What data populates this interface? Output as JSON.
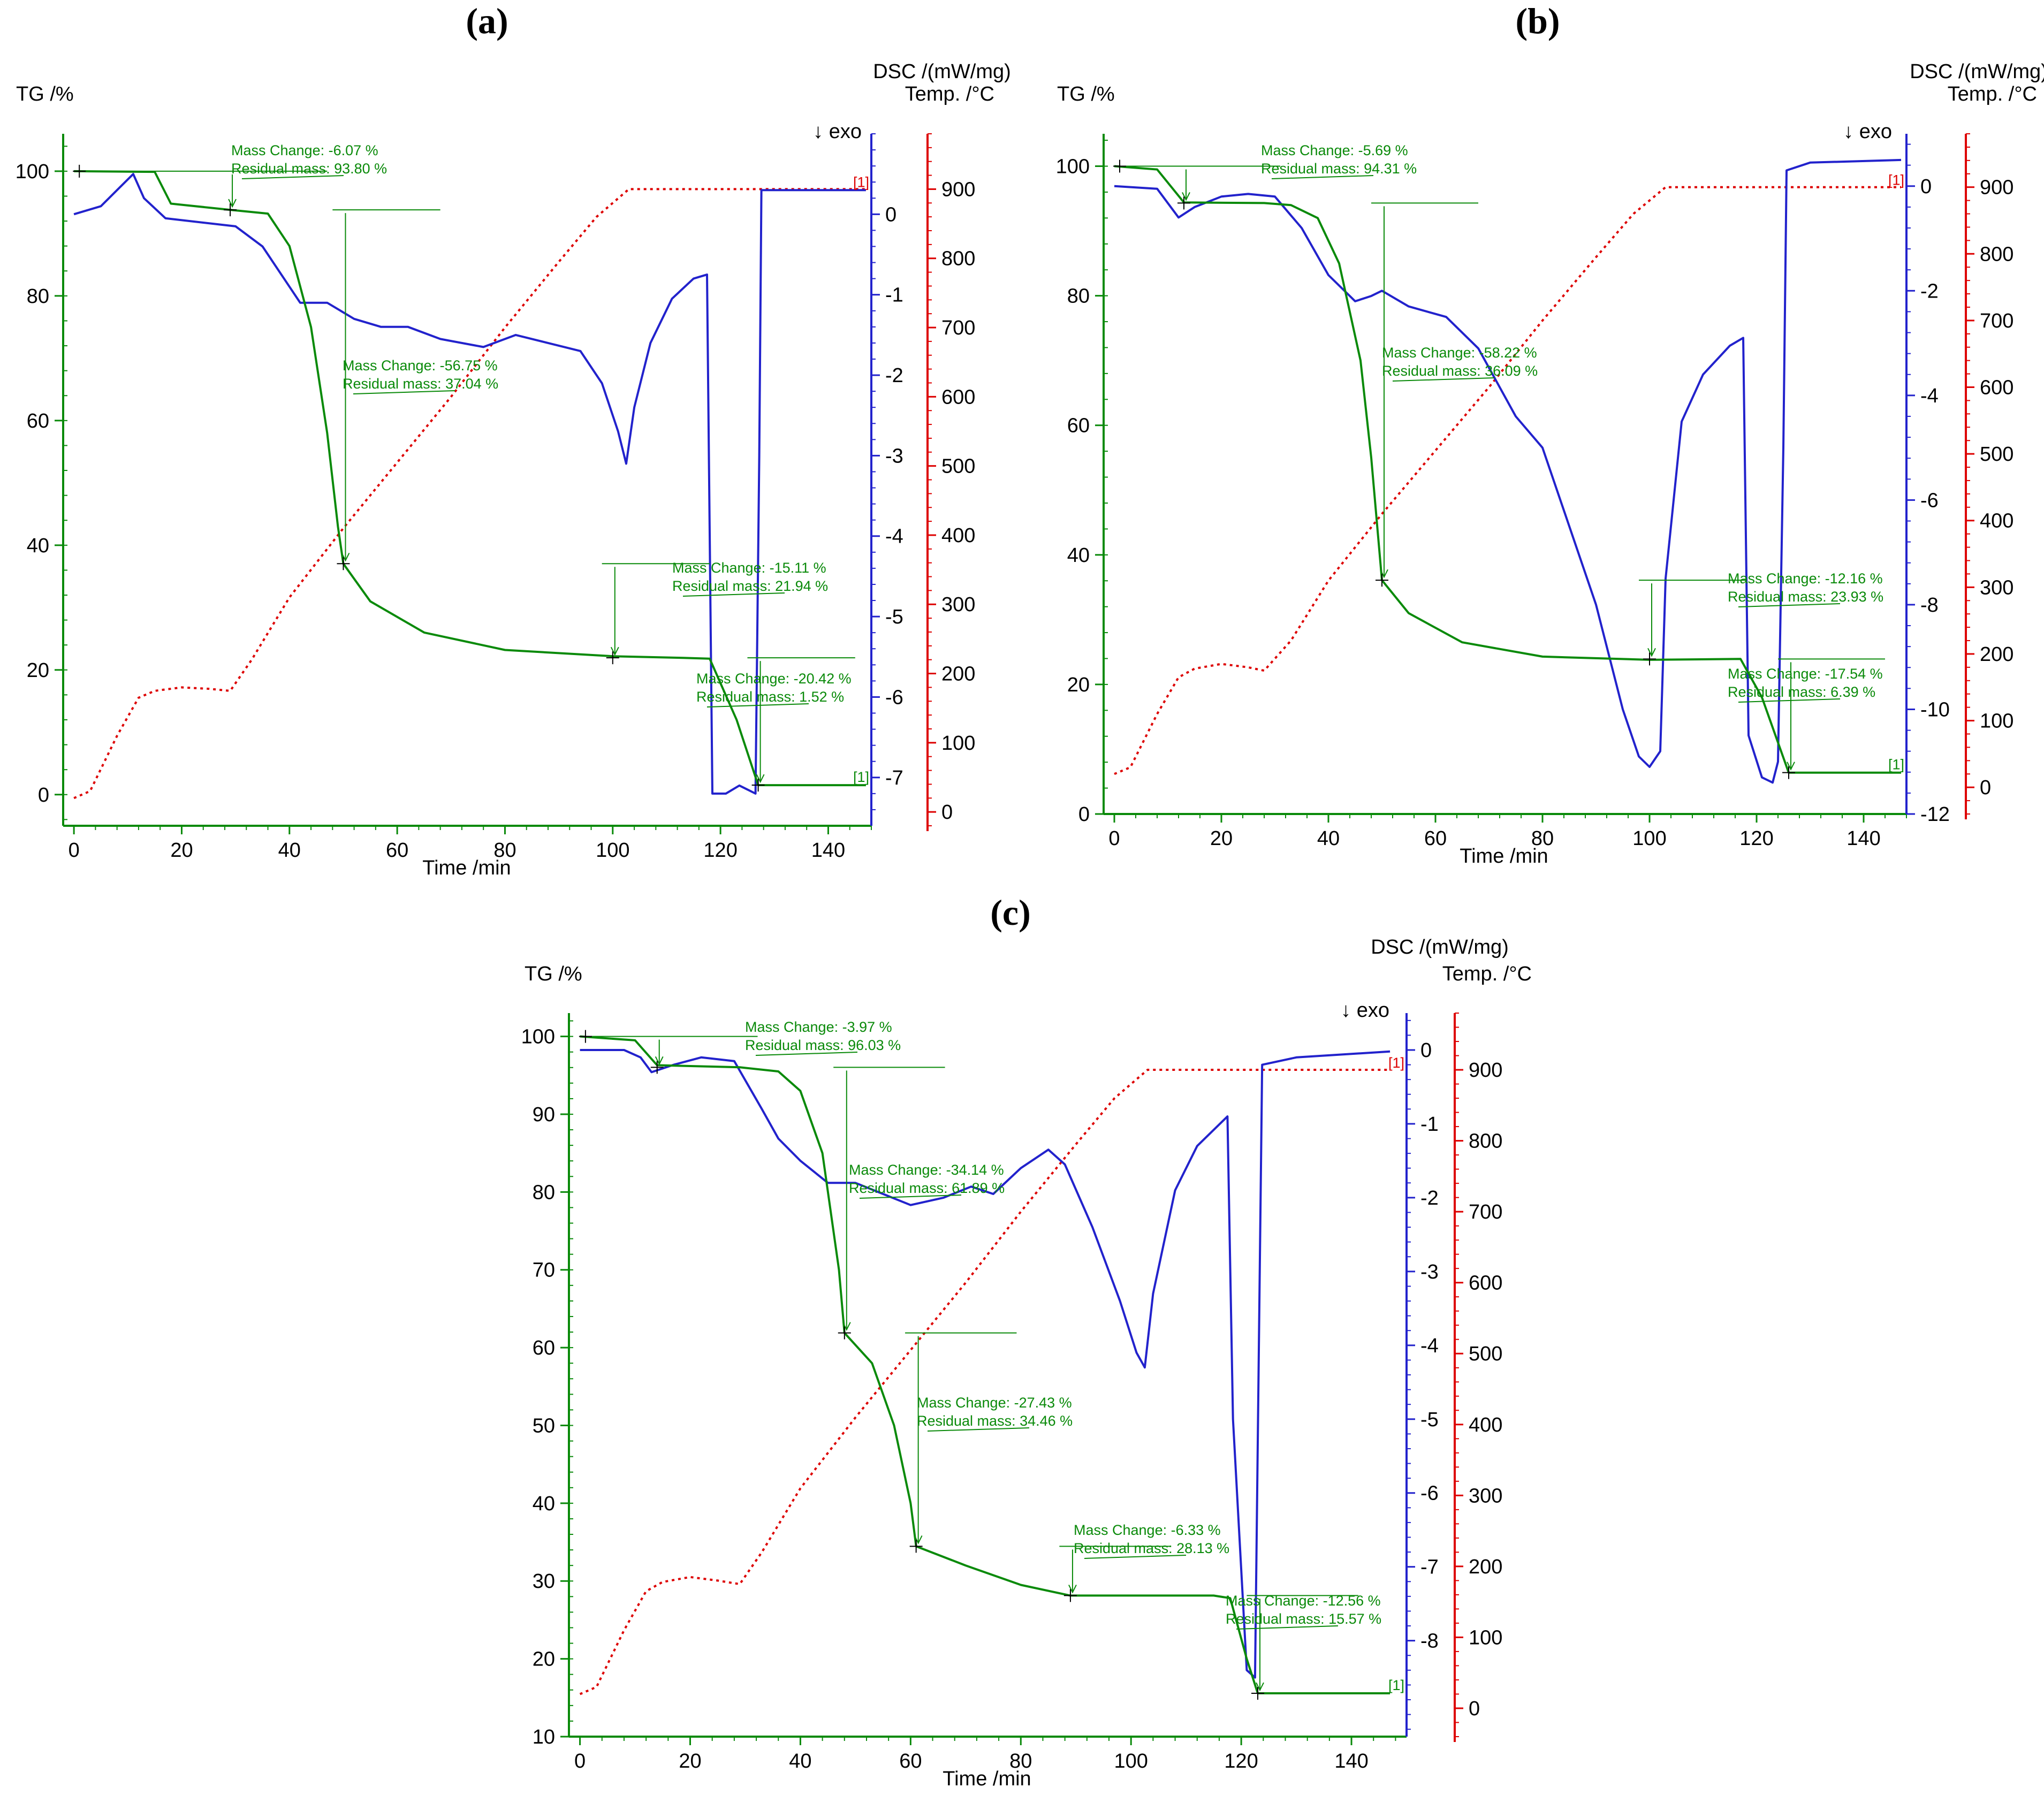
{
  "panels": [
    {
      "title": "(a)",
      "tg_label": "TG /%",
      "dsc_label": "DSC /(mW/mg)",
      "temp_label": "Temp. /°C",
      "exo_label": "↓ exo",
      "time_label": "Time /min",
      "marker_text": "[1]",
      "annotations": [
        {
          "mc": "Mass Change:   -6.07 %",
          "rm": "Residual mass:  93.80 %"
        },
        {
          "mc": "Mass Change:   -56.75 %",
          "rm": "Residual mass:  37.04 %"
        },
        {
          "mc": "Mass Change:   -15.11 %",
          "rm": "Residual mass:   21.94 %"
        },
        {
          "mc": "Mass Change:   -20.42 %",
          "rm": "Residual mass:       1.52 %"
        }
      ]
    },
    {
      "title": "(b)",
      "tg_label": "TG /%",
      "dsc_label": "DSC /(mW/mg)",
      "temp_label": "Temp. /°C",
      "exo_label": "↓ exo",
      "time_label": "Time /min",
      "marker_text": "[1]",
      "annotations": [
        {
          "mc": "Mass Change:   -5.69 %",
          "rm": "Residual mass:  94.31 %"
        },
        {
          "mc": "Mass Change:   -58.22 %",
          "rm": "Residual mass:  36.09 %"
        },
        {
          "mc": "Mass Change:   -12.16 %",
          "rm": "Residual mass:   23.93 %"
        },
        {
          "mc": "Mass Change:   -17.54 %",
          "rm": "Residual mass:       6.39 %"
        }
      ]
    },
    {
      "title": "(c)",
      "tg_label": "TG /%",
      "dsc_label": "DSC /(mW/mg)",
      "temp_label": "Temp. /°C",
      "exo_label": "↓ exo",
      "time_label": "Time /min",
      "marker_text": "[1]",
      "annotations": [
        {
          "mc": "Mass Change:   -3.97 %",
          "rm": "Residual mass:  96.03 %"
        },
        {
          "mc": "Mass Change:   -34.14 %",
          "rm": "Residual mass:  61.89 %"
        },
        {
          "mc": "Mass Change:   -27.43 %",
          "rm": "Residual mass:  34.46 %"
        },
        {
          "mc": "Mass Change:   -6.33 %",
          "rm": "Residual mass:  28.13 %"
        },
        {
          "mc": "Mass Change:   -12.56 %",
          "rm": "Residual mass:  15.57 %"
        }
      ]
    }
  ],
  "chart_data": [
    {
      "type": "line",
      "title": "(a)",
      "xlabel": "Time /min",
      "ylabel": "TG /%",
      "ylabel2": "DSC /(mW/mg)",
      "ylabel3": "Temp. /°C",
      "xlim": [
        -2,
        148
      ],
      "ylim_tg": [
        -5,
        106
      ],
      "ylim_dsc": [
        -7.6,
        1.0
      ],
      "ylim_temp": [
        -20,
        980
      ],
      "xticks": [
        0,
        20,
        40,
        60,
        80,
        100,
        120,
        140
      ],
      "tg_ticks": [
        0,
        20,
        40,
        60,
        80,
        100
      ],
      "dsc_ticks": [
        0,
        -1,
        -2,
        -3,
        -4,
        -5,
        -6,
        -7
      ],
      "temp_ticks": [
        0,
        100,
        200,
        300,
        400,
        500,
        600,
        700,
        800,
        900
      ],
      "tg": [
        [
          0,
          100
        ],
        [
          15,
          99.9
        ],
        [
          18,
          94.8
        ],
        [
          29,
          93.8
        ],
        [
          36,
          93.2
        ],
        [
          40,
          88
        ],
        [
          44,
          75
        ],
        [
          47,
          58
        ],
        [
          49,
          43
        ],
        [
          50,
          37.04
        ],
        [
          55,
          31
        ],
        [
          65,
          26
        ],
        [
          80,
          23.2
        ],
        [
          100,
          22.2
        ],
        [
          113,
          21.94
        ],
        [
          118,
          21.8
        ],
        [
          123,
          12
        ],
        [
          127,
          1.52
        ],
        [
          147,
          1.52
        ]
      ],
      "dsc": [
        [
          0,
          0
        ],
        [
          5,
          0.1
        ],
        [
          8,
          0.3
        ],
        [
          11,
          0.5
        ],
        [
          13,
          0.2
        ],
        [
          17,
          -0.05
        ],
        [
          30,
          -0.15
        ],
        [
          35,
          -0.4
        ],
        [
          40,
          -0.9
        ],
        [
          42,
          -1.1
        ],
        [
          47,
          -1.1
        ],
        [
          52,
          -1.3
        ],
        [
          57,
          -1.4
        ],
        [
          62,
          -1.4
        ],
        [
          68,
          -1.55
        ],
        [
          76,
          -1.65
        ],
        [
          82,
          -1.5
        ],
        [
          88,
          -1.6
        ],
        [
          94,
          -1.7
        ],
        [
          98,
          -2.1
        ],
        [
          101,
          -2.7
        ],
        [
          102.5,
          -3.1
        ],
        [
          104,
          -2.4
        ],
        [
          107,
          -1.6
        ],
        [
          111,
          -1.05
        ],
        [
          115,
          -0.8
        ],
        [
          117.5,
          -0.75
        ],
        [
          118.5,
          -7.2
        ],
        [
          121,
          -7.2
        ],
        [
          123.5,
          -7.1
        ],
        [
          125,
          -7.15
        ],
        [
          126.5,
          -7.2
        ],
        [
          127.2,
          -3
        ],
        [
          127.6,
          0.3
        ],
        [
          130,
          0.3
        ],
        [
          147,
          0.3
        ]
      ],
      "temp": [
        [
          0,
          20
        ],
        [
          3,
          30
        ],
        [
          8,
          110
        ],
        [
          12,
          165
        ],
        [
          15,
          175
        ],
        [
          20,
          180
        ],
        [
          25,
          178
        ],
        [
          29,
          175
        ],
        [
          33,
          220
        ],
        [
          40,
          310
        ],
        [
          50,
          410
        ],
        [
          60,
          505
        ],
        [
          70,
          600
        ],
        [
          80,
          700
        ],
        [
          90,
          795
        ],
        [
          97,
          860
        ],
        [
          103,
          900
        ],
        [
          147,
          900
        ]
      ],
      "steps": [
        {
          "mass_change": -6.07,
          "residual_mass": 93.8
        },
        {
          "mass_change": -56.75,
          "residual_mass": 37.04
        },
        {
          "mass_change": -15.11,
          "residual_mass": 21.94
        },
        {
          "mass_change": -20.42,
          "residual_mass": 1.52
        }
      ]
    },
    {
      "type": "line",
      "title": "(b)",
      "xlabel": "Time /min",
      "ylabel": "TG /%",
      "ylabel2": "DSC /(mW/mg)",
      "ylabel3": "Temp. /°C",
      "xlim": [
        -2,
        148
      ],
      "ylim_tg": [
        0,
        105
      ],
      "ylim_dsc": [
        -12.0,
        1.0
      ],
      "ylim_temp": [
        -40,
        980
      ],
      "xticks": [
        0,
        20,
        40,
        60,
        80,
        100,
        120,
        140
      ],
      "tg_ticks": [
        0,
        20,
        40,
        60,
        80,
        100
      ],
      "dsc_ticks": [
        0,
        -2,
        -4,
        -6,
        -8,
        -10,
        -12
      ],
      "temp_ticks": [
        0,
        100,
        200,
        300,
        400,
        500,
        600,
        700,
        800,
        900
      ],
      "tg": [
        [
          0,
          100
        ],
        [
          8,
          99.5
        ],
        [
          13,
          94.4
        ],
        [
          28,
          94.31
        ],
        [
          33,
          94
        ],
        [
          38,
          92
        ],
        [
          42,
          85
        ],
        [
          46,
          70
        ],
        [
          48,
          55
        ],
        [
          50,
          36.09
        ],
        [
          55,
          31
        ],
        [
          65,
          26.5
        ],
        [
          80,
          24.3
        ],
        [
          100,
          23.8
        ],
        [
          117,
          23.93
        ],
        [
          121,
          18
        ],
        [
          126,
          6.39
        ],
        [
          147,
          6.39
        ]
      ],
      "dsc": [
        [
          0,
          0
        ],
        [
          8,
          -0.05
        ],
        [
          12,
          -0.6
        ],
        [
          15,
          -0.4
        ],
        [
          20,
          -0.2
        ],
        [
          25,
          -0.15
        ],
        [
          30,
          -0.2
        ],
        [
          35,
          -0.8
        ],
        [
          40,
          -1.7
        ],
        [
          45,
          -2.2
        ],
        [
          48,
          -2.1
        ],
        [
          50,
          -2.0
        ],
        [
          55,
          -2.3
        ],
        [
          62,
          -2.5
        ],
        [
          68,
          -3.1
        ],
        [
          75,
          -4.4
        ],
        [
          80,
          -5.0
        ],
        [
          90,
          -8.0
        ],
        [
          95,
          -10.0
        ],
        [
          98,
          -10.9
        ],
        [
          100,
          -11.1
        ],
        [
          102,
          -10.8
        ],
        [
          103,
          -7.5
        ],
        [
          106,
          -4.5
        ],
        [
          110,
          -3.6
        ],
        [
          115,
          -3.05
        ],
        [
          117.5,
          -2.9
        ],
        [
          118.5,
          -10.5
        ],
        [
          121,
          -11.3
        ],
        [
          123,
          -11.4
        ],
        [
          124,
          -11.0
        ],
        [
          125,
          -5
        ],
        [
          125.6,
          0.3
        ],
        [
          130,
          0.45
        ],
        [
          147,
          0.5
        ]
      ],
      "temp": [
        [
          0,
          20
        ],
        [
          3,
          30
        ],
        [
          8,
          110
        ],
        [
          12,
          165
        ],
        [
          15,
          178
        ],
        [
          20,
          185
        ],
        [
          25,
          180
        ],
        [
          28,
          175
        ],
        [
          33,
          220
        ],
        [
          40,
          310
        ],
        [
          50,
          410
        ],
        [
          60,
          505
        ],
        [
          70,
          600
        ],
        [
          80,
          700
        ],
        [
          90,
          795
        ],
        [
          97,
          860
        ],
        [
          103,
          900
        ],
        [
          147,
          900
        ]
      ],
      "steps": [
        {
          "mass_change": -5.69,
          "residual_mass": 94.31
        },
        {
          "mass_change": -58.22,
          "residual_mass": 36.09
        },
        {
          "mass_change": -12.16,
          "residual_mass": 23.93
        },
        {
          "mass_change": -17.54,
          "residual_mass": 6.39
        }
      ]
    },
    {
      "type": "line",
      "title": "(c)",
      "xlabel": "Time /min",
      "ylabel": "TG /%",
      "ylabel2": "DSC /(mW/mg)",
      "ylabel3": "Temp. /°C",
      "xlim": [
        -2,
        150
      ],
      "ylim_tg": [
        10,
        103
      ],
      "ylim_dsc": [
        -9.3,
        0.5
      ],
      "ylim_temp": [
        -40,
        980
      ],
      "xticks": [
        0,
        20,
        40,
        60,
        80,
        100,
        120,
        140
      ],
      "tg_ticks": [
        10,
        20,
        30,
        40,
        50,
        60,
        70,
        80,
        90,
        100
      ],
      "dsc_ticks": [
        0,
        -1,
        -2,
        -3,
        -4,
        -5,
        -6,
        -7,
        -8
      ],
      "temp_ticks": [
        0,
        100,
        200,
        300,
        400,
        500,
        600,
        700,
        800,
        900
      ],
      "tg": [
        [
          0,
          100
        ],
        [
          10,
          99.5
        ],
        [
          14,
          96.3
        ],
        [
          29,
          96.03
        ],
        [
          36,
          95.5
        ],
        [
          40,
          93
        ],
        [
          44,
          85
        ],
        [
          47,
          70
        ],
        [
          48,
          61.89
        ],
        [
          53,
          58
        ],
        [
          57,
          50
        ],
        [
          60,
          40
        ],
        [
          61,
          34.46
        ],
        [
          70,
          32
        ],
        [
          80,
          29.5
        ],
        [
          89,
          28.13
        ],
        [
          115,
          28.13
        ],
        [
          118,
          27.8
        ],
        [
          121,
          20
        ],
        [
          123,
          15.57
        ],
        [
          147,
          15.57
        ]
      ],
      "dsc": [
        [
          0,
          0
        ],
        [
          8,
          0
        ],
        [
          11,
          -0.1
        ],
        [
          13,
          -0.3
        ],
        [
          17,
          -0.2
        ],
        [
          22,
          -0.1
        ],
        [
          28,
          -0.15
        ],
        [
          33,
          -0.8
        ],
        [
          36,
          -1.2
        ],
        [
          40,
          -1.5
        ],
        [
          45,
          -1.8
        ],
        [
          50,
          -1.8
        ],
        [
          55,
          -1.95
        ],
        [
          60,
          -2.1
        ],
        [
          66,
          -2.0
        ],
        [
          71,
          -1.85
        ],
        [
          75,
          -1.95
        ],
        [
          80,
          -1.6
        ],
        [
          85,
          -1.35
        ],
        [
          88,
          -1.55
        ],
        [
          93,
          -2.4
        ],
        [
          98,
          -3.4
        ],
        [
          101,
          -4.1
        ],
        [
          102.5,
          -4.3
        ],
        [
          104,
          -3.3
        ],
        [
          108,
          -1.9
        ],
        [
          112,
          -1.3
        ],
        [
          117.5,
          -0.9
        ],
        [
          118.5,
          -5
        ],
        [
          121,
          -8.4
        ],
        [
          122.5,
          -8.5
        ],
        [
          123.2,
          -4
        ],
        [
          123.8,
          -0.2
        ],
        [
          130,
          -0.1
        ],
        [
          147,
          -0.02
        ]
      ],
      "temp": [
        [
          0,
          20
        ],
        [
          3,
          30
        ],
        [
          8,
          110
        ],
        [
          12,
          165
        ],
        [
          15,
          178
        ],
        [
          20,
          185
        ],
        [
          25,
          180
        ],
        [
          29,
          175
        ],
        [
          33,
          220
        ],
        [
          40,
          310
        ],
        [
          50,
          410
        ],
        [
          60,
          505
        ],
        [
          70,
          600
        ],
        [
          80,
          700
        ],
        [
          90,
          795
        ],
        [
          97,
          860
        ],
        [
          103,
          900
        ],
        [
          147,
          900
        ]
      ],
      "steps": [
        {
          "mass_change": -3.97,
          "residual_mass": 96.03
        },
        {
          "mass_change": -34.14,
          "residual_mass": 61.89
        },
        {
          "mass_change": -27.43,
          "residual_mass": 34.46
        },
        {
          "mass_change": -6.33,
          "residual_mass": 28.13
        },
        {
          "mass_change": -12.56,
          "residual_mass": 15.57
        }
      ]
    }
  ]
}
